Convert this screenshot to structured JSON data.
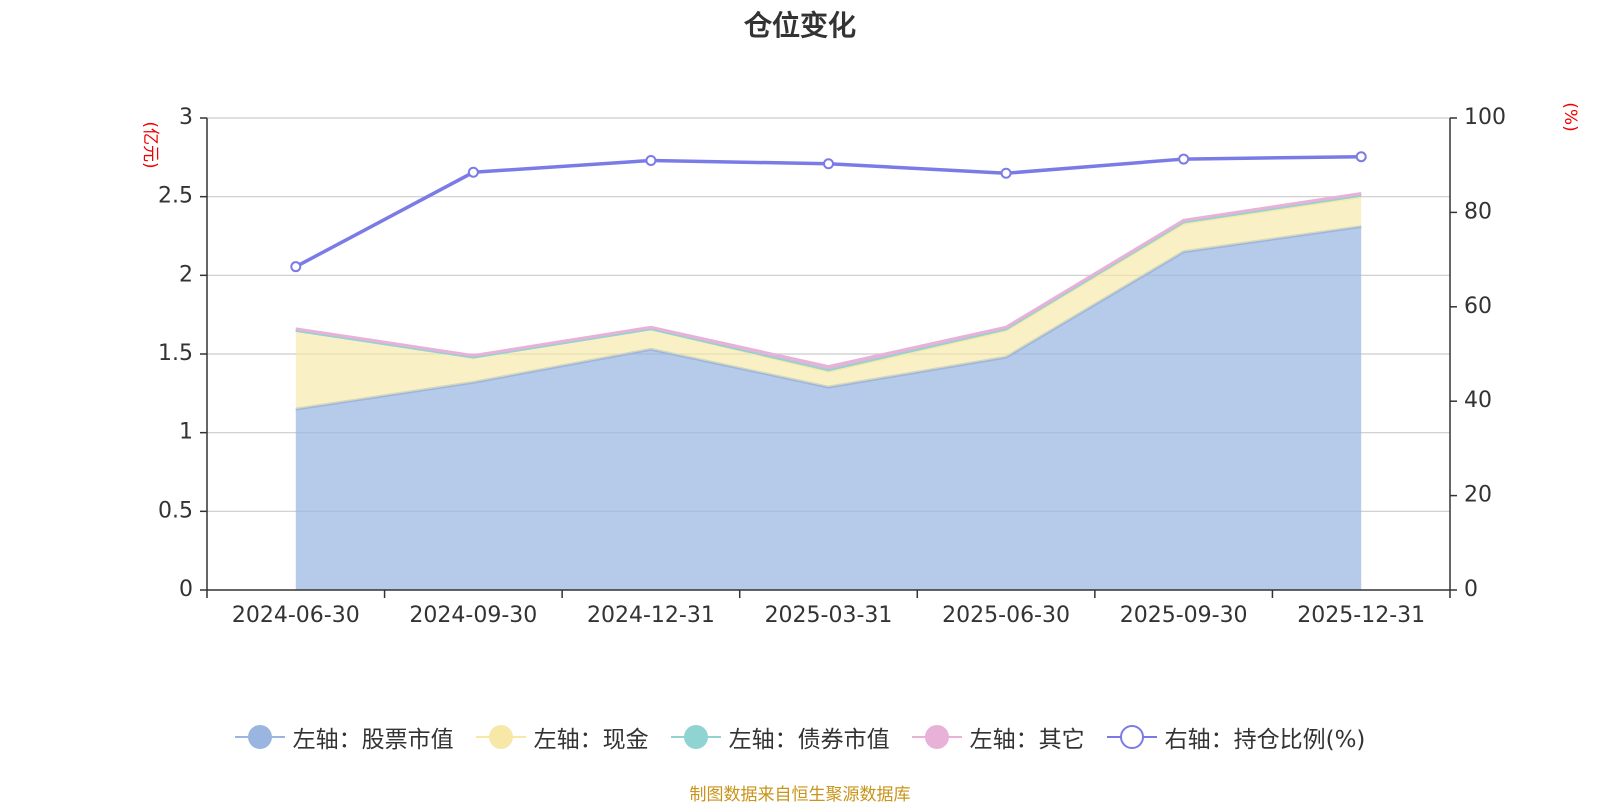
{
  "chart_data": {
    "type": "area",
    "title": "仓位变化",
    "categories": [
      "2024-06-30",
      "2024-09-30",
      "2024-12-31",
      "2025-03-31",
      "2025-06-30",
      "2025-09-30",
      "2025-12-31"
    ],
    "left_axis": {
      "unit": "(亿元)",
      "ylim": [
        0,
        3
      ],
      "ticks": [
        "0",
        "0.5",
        "1",
        "1.5",
        "2",
        "2.5",
        "3"
      ]
    },
    "right_axis": {
      "unit": "(%)",
      "ylim": [
        0,
        100
      ],
      "ticks": [
        "0",
        "20",
        "40",
        "60",
        "80",
        "100"
      ]
    },
    "stacked_series": [
      {
        "name": "左轴：股票市值",
        "color": "#9ab6e0",
        "values": [
          1.15,
          1.32,
          1.53,
          1.29,
          1.48,
          2.15,
          2.31
        ]
      },
      {
        "name": "左轴：现金",
        "color": "#f8e8a8",
        "values": [
          0.5,
          0.16,
          0.13,
          0.1,
          0.17,
          0.18,
          0.19
        ]
      },
      {
        "name": "左轴：债券市值",
        "color": "#8fd3d3",
        "values": [
          0.0,
          0.0,
          0.0,
          0.01,
          0.01,
          0.01,
          0.01
        ]
      },
      {
        "name": "左轴：其它",
        "color": "#e8b2d8",
        "values": [
          0.01,
          0.01,
          0.01,
          0.02,
          0.01,
          0.01,
          0.01
        ]
      }
    ],
    "line_series": {
      "name": "右轴：持仓比例(%)",
      "color": "#7b7be8",
      "values": [
        68.5,
        88.5,
        91.0,
        90.3,
        88.3,
        91.3,
        91.8
      ]
    },
    "grid": true,
    "legend_position": "bottom"
  },
  "footer": {
    "source": "制图数据来自恒生聚源数据库"
  }
}
